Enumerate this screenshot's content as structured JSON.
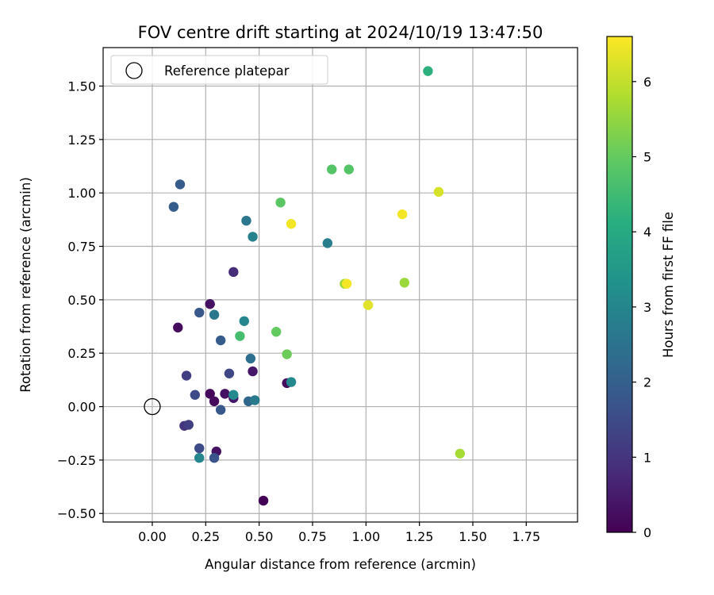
{
  "chart_data": {
    "type": "scatter",
    "title": "FOV centre drift starting at 2024/10/19 13:47:50",
    "xlabel": "Angular distance from reference (arcmin)",
    "ylabel": "Rotation from reference (arcmin)",
    "xlim": [
      -0.23,
      1.99
    ],
    "ylim": [
      -0.54,
      1.68
    ],
    "xticks": [
      0.0,
      0.25,
      0.5,
      0.75,
      1.0,
      1.25,
      1.5,
      1.75
    ],
    "xtick_labels": [
      "0.00",
      "0.25",
      "0.50",
      "0.75",
      "1.00",
      "1.25",
      "1.50",
      "1.75"
    ],
    "yticks": [
      -0.5,
      -0.25,
      0.0,
      0.25,
      0.5,
      0.75,
      1.0,
      1.25,
      1.5
    ],
    "ytick_labels": [
      "−0.50",
      "−0.25",
      "0.00",
      "0.25",
      "0.50",
      "0.75",
      "1.00",
      "1.25",
      "1.50"
    ],
    "grid": true,
    "legend": {
      "position": "top-left",
      "entries": [
        "Reference platepar"
      ]
    },
    "reference_point": {
      "x": 0.0,
      "y": 0.0
    },
    "colorbar": {
      "label": "Hours from first FF file",
      "colormap": "viridis",
      "range": [
        0,
        6.6
      ],
      "ticks": [
        0,
        1,
        2,
        3,
        4,
        5,
        6
      ],
      "tick_labels": [
        "0",
        "1",
        "2",
        "3",
        "4",
        "5",
        "6"
      ]
    },
    "points": [
      {
        "x": 0.52,
        "y": -0.44,
        "h": 0.05
      },
      {
        "x": 0.12,
        "y": 0.37,
        "h": 0.2
      },
      {
        "x": 0.27,
        "y": 0.48,
        "h": 0.3
      },
      {
        "x": 0.27,
        "y": 0.06,
        "h": 0.1
      },
      {
        "x": 0.29,
        "y": 0.025,
        "h": 0.2
      },
      {
        "x": 0.34,
        "y": 0.06,
        "h": 0.3
      },
      {
        "x": 0.38,
        "y": 0.04,
        "h": 0.4
      },
      {
        "x": 0.3,
        "y": -0.21,
        "h": 0.3
      },
      {
        "x": 0.47,
        "y": 0.165,
        "h": 0.4
      },
      {
        "x": 0.63,
        "y": 0.11,
        "h": 0.2
      },
      {
        "x": 0.38,
        "y": 0.63,
        "h": 0.8
      },
      {
        "x": 0.15,
        "y": -0.09,
        "h": 1.0
      },
      {
        "x": 0.17,
        "y": -0.085,
        "h": 1.2
      },
      {
        "x": 0.16,
        "y": 0.145,
        "h": 1.2
      },
      {
        "x": 0.36,
        "y": 0.155,
        "h": 1.4
      },
      {
        "x": 0.2,
        "y": 0.055,
        "h": 1.5
      },
      {
        "x": 0.22,
        "y": -0.195,
        "h": 1.5
      },
      {
        "x": 0.29,
        "y": -0.24,
        "h": 1.7
      },
      {
        "x": 0.32,
        "y": -0.015,
        "h": 1.8
      },
      {
        "x": 0.32,
        "y": 0.31,
        "h": 1.9
      },
      {
        "x": 0.22,
        "y": 0.44,
        "h": 1.8
      },
      {
        "x": 0.1,
        "y": 0.935,
        "h": 1.9
      },
      {
        "x": 0.13,
        "y": 1.04,
        "h": 1.9
      },
      {
        "x": 0.45,
        "y": 0.025,
        "h": 2.2
      },
      {
        "x": 0.46,
        "y": 0.225,
        "h": 2.4
      },
      {
        "x": 0.29,
        "y": 0.43,
        "h": 2.6
      },
      {
        "x": 0.44,
        "y": 0.87,
        "h": 2.6
      },
      {
        "x": 0.48,
        "y": 0.03,
        "h": 2.7
      },
      {
        "x": 0.22,
        "y": -0.24,
        "h": 3.0
      },
      {
        "x": 0.38,
        "y": 0.055,
        "h": 3.1
      },
      {
        "x": 0.47,
        "y": 0.795,
        "h": 2.9
      },
      {
        "x": 0.82,
        "y": 0.765,
        "h": 2.8
      },
      {
        "x": 0.43,
        "y": 0.4,
        "h": 3.0
      },
      {
        "x": 0.65,
        "y": 0.115,
        "h": 3.1
      },
      {
        "x": 0.41,
        "y": 0.33,
        "h": 4.6
      },
      {
        "x": 1.29,
        "y": 1.57,
        "h": 4.2
      },
      {
        "x": 0.84,
        "y": 1.11,
        "h": 4.8
      },
      {
        "x": 0.92,
        "y": 1.11,
        "h": 4.8
      },
      {
        "x": 0.6,
        "y": 0.955,
        "h": 4.9
      },
      {
        "x": 0.58,
        "y": 0.35,
        "h": 5.0
      },
      {
        "x": 0.63,
        "y": 0.245,
        "h": 5.1
      },
      {
        "x": 0.9,
        "y": 0.575,
        "h": 5.6
      },
      {
        "x": 1.18,
        "y": 0.58,
        "h": 5.6
      },
      {
        "x": 1.44,
        "y": -0.22,
        "h": 5.7
      },
      {
        "x": 0.65,
        "y": 0.855,
        "h": 6.5
      },
      {
        "x": 0.91,
        "y": 0.575,
        "h": 6.5
      },
      {
        "x": 1.01,
        "y": 0.475,
        "h": 6.3
      },
      {
        "x": 1.17,
        "y": 0.9,
        "h": 6.5
      },
      {
        "x": 1.34,
        "y": 1.005,
        "h": 6.2
      }
    ]
  }
}
